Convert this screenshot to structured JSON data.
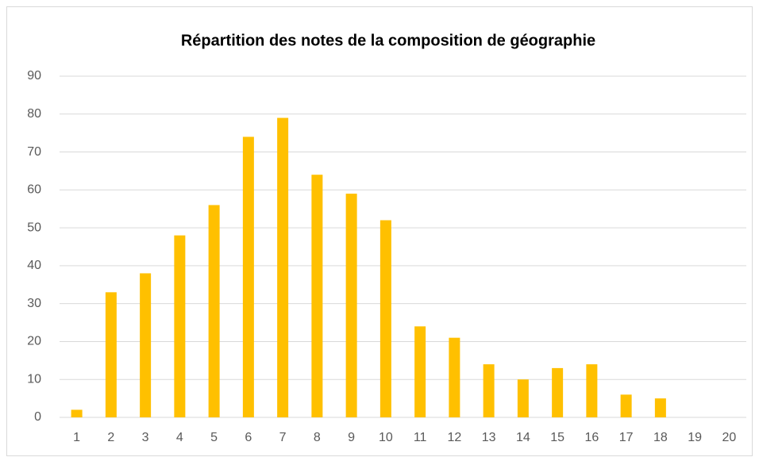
{
  "chart_data": {
    "type": "bar",
    "title": "Répartition des notes de la composition de géographie",
    "categories": [
      "1",
      "2",
      "3",
      "4",
      "5",
      "6",
      "7",
      "8",
      "9",
      "10",
      "11",
      "12",
      "13",
      "14",
      "15",
      "16",
      "17",
      "18",
      "19",
      "20"
    ],
    "values": [
      2,
      33,
      38,
      48,
      56,
      74,
      79,
      64,
      59,
      52,
      24,
      21,
      14,
      10,
      13,
      14,
      6,
      5,
      0,
      0
    ],
    "color": "#ffc000",
    "ylim": [
      0,
      90
    ],
    "yticks": [
      0,
      10,
      20,
      30,
      40,
      50,
      60,
      70,
      80,
      90
    ],
    "grid": true
  }
}
